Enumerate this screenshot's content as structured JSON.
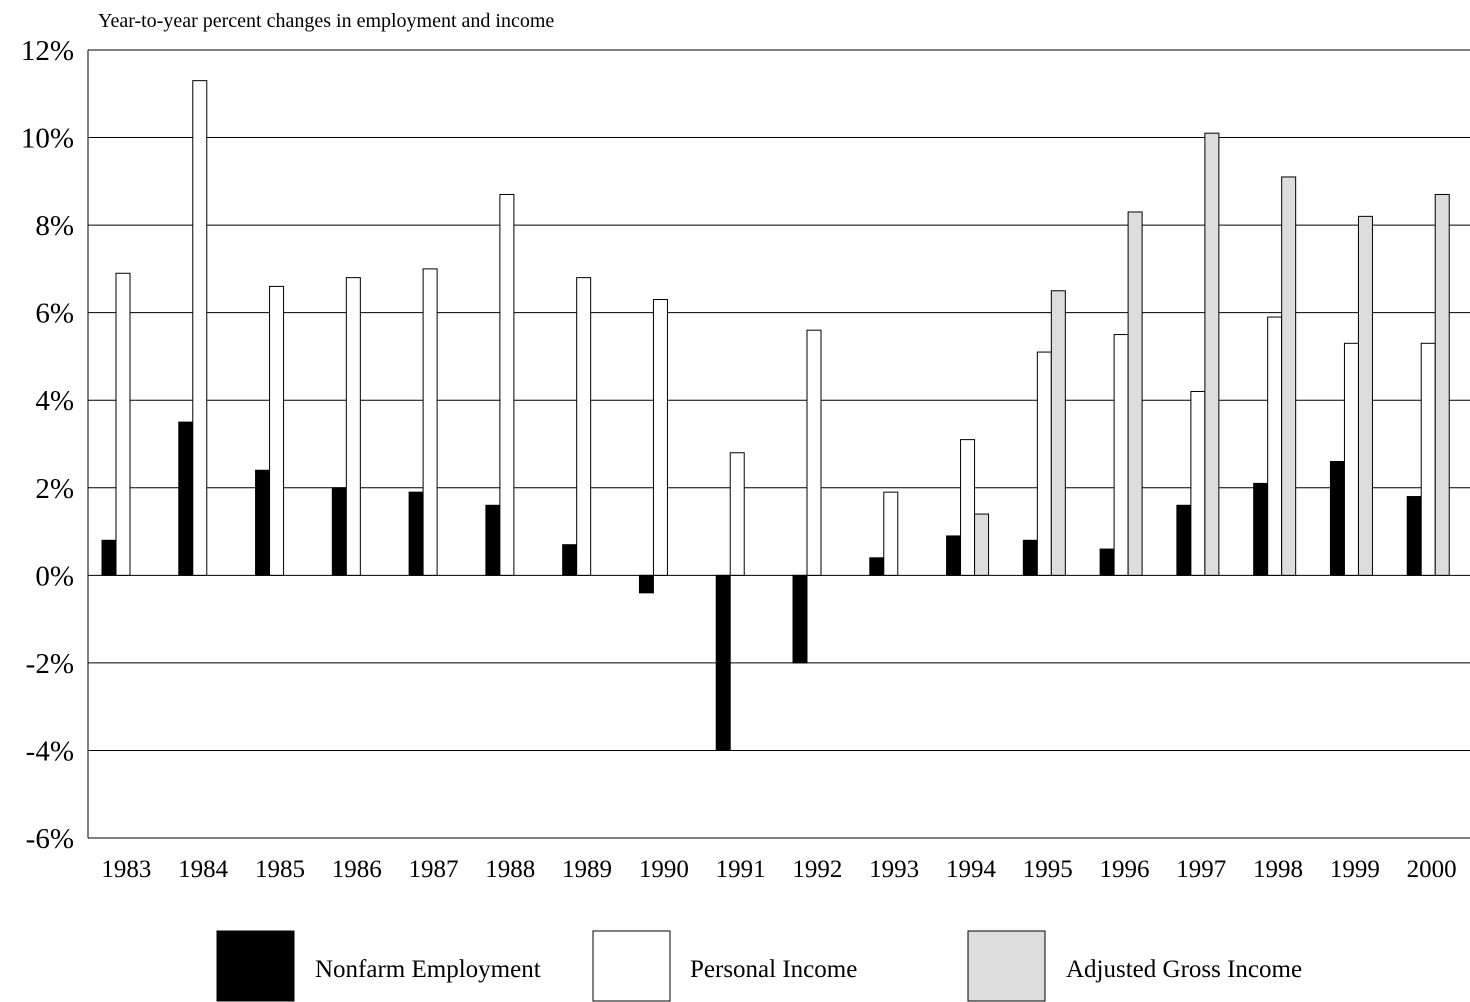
{
  "chart_data": {
    "type": "bar",
    "title": "Year-to-year percent changes in employment and income",
    "xlabel": "",
    "ylabel": "",
    "ylim": [
      -6,
      12
    ],
    "yticks": [
      12,
      10,
      8,
      6,
      4,
      2,
      0,
      -2,
      -4,
      -6
    ],
    "ytick_labels": [
      "12%",
      "10%",
      "8%",
      "6%",
      "4%",
      "2%",
      "0%",
      "-2%",
      "-4%",
      "-6%"
    ],
    "grid": true,
    "legend_position": "bottom",
    "categories": [
      "1983",
      "1984",
      "1985",
      "1986",
      "1987",
      "1988",
      "1989",
      "1990",
      "1991",
      "1992",
      "1993",
      "1994",
      "1995",
      "1996",
      "1997",
      "1998",
      "1999",
      "2000"
    ],
    "series": [
      {
        "name": "Nonfarm Employment",
        "color": "#000000",
        "values": [
          0.8,
          3.5,
          2.4,
          2.0,
          1.9,
          1.6,
          0.7,
          -0.4,
          -4.0,
          -2.0,
          0.4,
          0.9,
          0.8,
          0.6,
          1.6,
          2.1,
          2.6,
          1.8
        ]
      },
      {
        "name": "Personal Income",
        "color": "#ffffff",
        "values": [
          6.9,
          11.3,
          6.6,
          6.8,
          7.0,
          8.7,
          6.8,
          6.3,
          2.8,
          5.6,
          1.9,
          3.1,
          5.1,
          5.5,
          4.2,
          5.9,
          5.3,
          5.3
        ]
      },
      {
        "name": "Adjusted Gross Income",
        "color": "#dddddd",
        "values": [
          null,
          null,
          null,
          null,
          null,
          null,
          null,
          null,
          null,
          null,
          null,
          1.4,
          6.5,
          8.3,
          10.1,
          9.1,
          8.2,
          8.7
        ]
      }
    ]
  }
}
